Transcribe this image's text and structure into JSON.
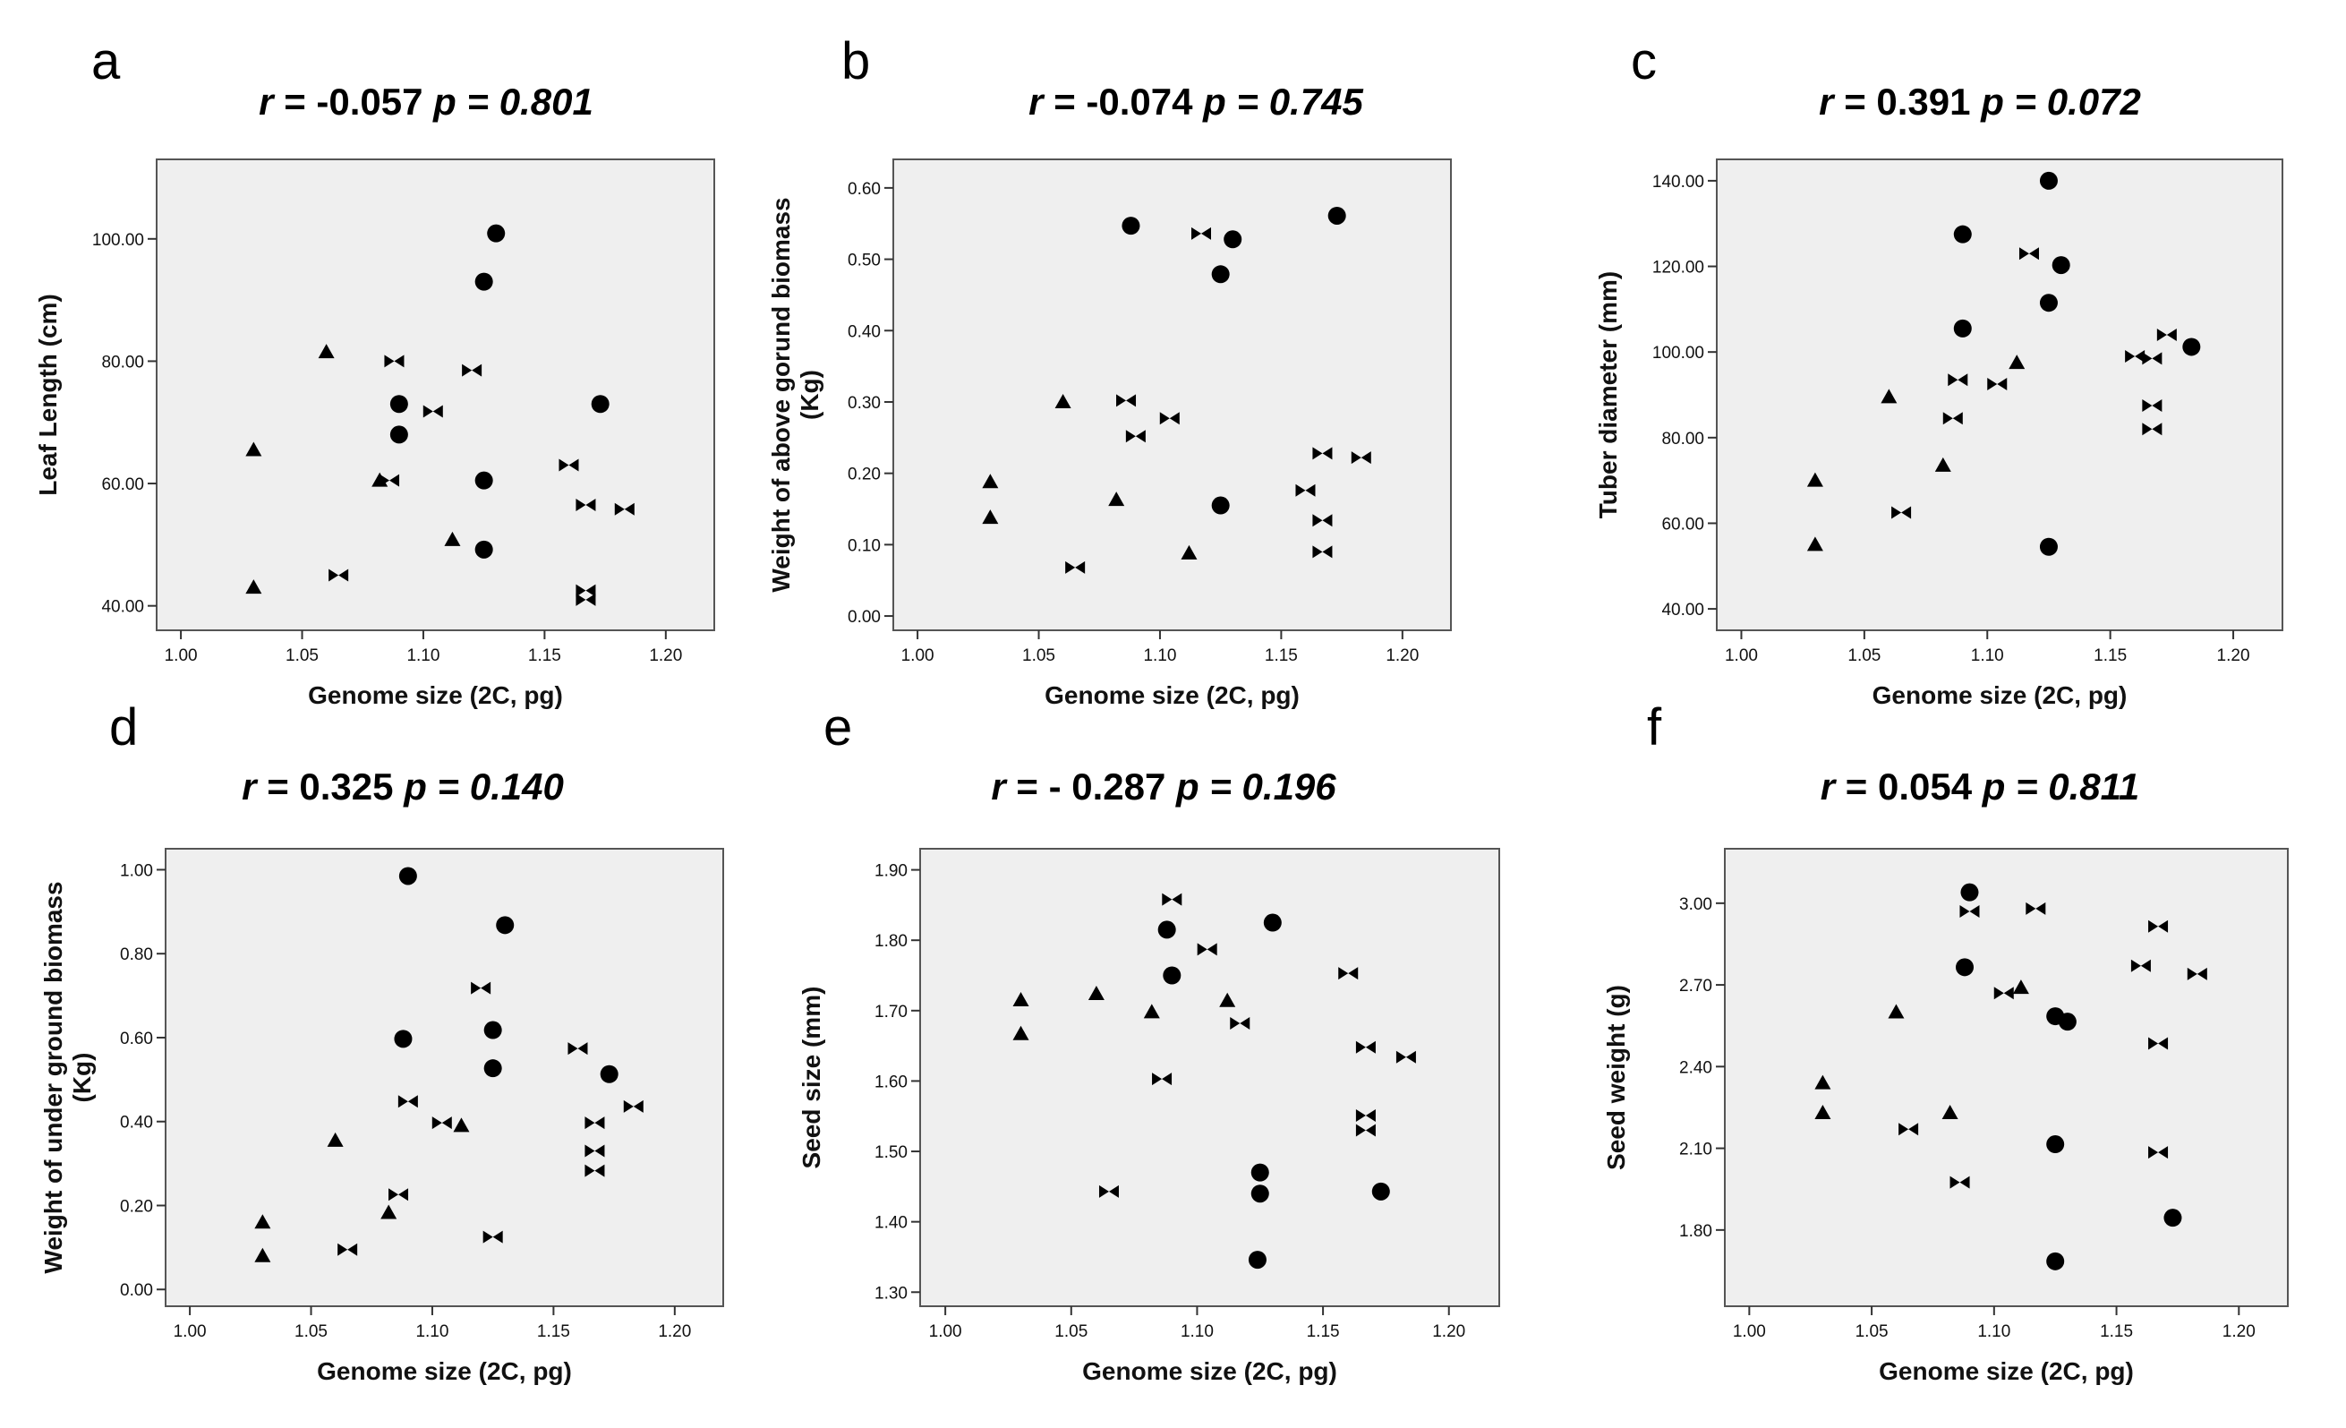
{
  "chart_data": [
    {
      "type": "scatter",
      "panel_letter": "a",
      "title": {
        "r_label": "r",
        "r_value": "= -0.057",
        "p_label": "p",
        "p_value": "= 0.801"
      },
      "xlabel": "Genome size (2C, pg)",
      "ylabel": [
        "Leaf Length (cm)"
      ],
      "xlim": [
        0.99,
        1.22
      ],
      "ylim": [
        36,
        113
      ],
      "xticks": [
        "1.00",
        "1.05",
        "1.10",
        "1.15",
        "1.20"
      ],
      "xtick_values": [
        1.0,
        1.05,
        1.1,
        1.15,
        1.2
      ],
      "yticks": [
        "40.00",
        "60.00",
        "80.00",
        "100.00"
      ],
      "ytick_values": [
        40,
        60,
        80,
        100
      ],
      "series": [
        {
          "name": "circle",
          "marker": "circle",
          "points": [
            [
              1.13,
              100.9
            ],
            [
              1.125,
              93
            ],
            [
              1.09,
              73
            ],
            [
              1.173,
              73
            ],
            [
              1.09,
              68
            ],
            [
              1.125,
              60.5
            ],
            [
              1.125,
              49.2
            ]
          ]
        },
        {
          "name": "triangle",
          "marker": "triangle",
          "points": [
            [
              1.06,
              81.5
            ],
            [
              1.03,
              65.5
            ],
            [
              1.082,
              60.5
            ],
            [
              1.112,
              50.8
            ],
            [
              1.03,
              43
            ]
          ]
        },
        {
          "name": "bowtie",
          "marker": "bowtie",
          "points": [
            [
              1.088,
              80
            ],
            [
              1.12,
              78.5
            ],
            [
              1.104,
              71.8
            ],
            [
              1.16,
              63
            ],
            [
              1.086,
              60.5
            ],
            [
              1.167,
              56.5
            ],
            [
              1.183,
              55.8
            ],
            [
              1.065,
              45
            ],
            [
              1.167,
              42.5
            ],
            [
              1.167,
              41
            ]
          ]
        }
      ]
    },
    {
      "type": "scatter",
      "panel_letter": "b",
      "title": {
        "r_label": "r",
        "r_value": "= -0.074",
        "p_label": "p",
        "p_value": "= 0.745"
      },
      "xlabel": "Genome size (2C, pg)",
      "ylabel": [
        "Weight of above gorund biomass",
        "(Kg)"
      ],
      "xlim": [
        0.99,
        1.22
      ],
      "ylim": [
        -0.02,
        0.64
      ],
      "xticks": [
        "1.00",
        "1.05",
        "1.10",
        "1.15",
        "1.20"
      ],
      "xtick_values": [
        1.0,
        1.05,
        1.1,
        1.15,
        1.2
      ],
      "yticks": [
        "0.00",
        "0.10",
        "0.20",
        "0.30",
        "0.40",
        "0.50",
        "0.60"
      ],
      "ytick_values": [
        0,
        0.1,
        0.2,
        0.3,
        0.4,
        0.5,
        0.6
      ],
      "series": [
        {
          "name": "circle",
          "marker": "circle",
          "points": [
            [
              1.173,
              0.561
            ],
            [
              1.088,
              0.547
            ],
            [
              1.13,
              0.528
            ],
            [
              1.125,
              0.479
            ],
            [
              1.125,
              0.155
            ]
          ]
        },
        {
          "name": "triangle",
          "marker": "triangle",
          "points": [
            [
              1.06,
              0.3
            ],
            [
              1.03,
              0.188
            ],
            [
              1.03,
              0.138
            ],
            [
              1.082,
              0.163
            ],
            [
              1.112,
              0.088
            ]
          ]
        },
        {
          "name": "bowtie",
          "marker": "bowtie",
          "points": [
            [
              1.117,
              0.536
            ],
            [
              1.086,
              0.302
            ],
            [
              1.09,
              0.252
            ],
            [
              1.104,
              0.277
            ],
            [
              1.167,
              0.228
            ],
            [
              1.183,
              0.222
            ],
            [
              1.16,
              0.176
            ],
            [
              1.167,
              0.134
            ],
            [
              1.167,
              0.09
            ],
            [
              1.065,
              0.068
            ]
          ]
        }
      ]
    },
    {
      "type": "scatter",
      "panel_letter": "c",
      "title": {
        "r_label": "r",
        "r_value": "= 0.391",
        "p_label": "p",
        "p_value": "= 0.072"
      },
      "xlabel": "Genome size (2C, pg)",
      "ylabel": [
        "Tuber diameter (mm)"
      ],
      "xlim": [
        0.99,
        1.22
      ],
      "ylim": [
        35,
        145
      ],
      "xticks": [
        "1.00",
        "1.05",
        "1.10",
        "1.15",
        "1.20"
      ],
      "xtick_values": [
        1.0,
        1.05,
        1.1,
        1.15,
        1.2
      ],
      "yticks": [
        "40.00",
        "60.00",
        "80.00",
        "100.00",
        "120.00",
        "140.00"
      ],
      "ytick_values": [
        40,
        60,
        80,
        100,
        120,
        140
      ],
      "series": [
        {
          "name": "circle",
          "marker": "circle",
          "points": [
            [
              1.125,
              140
            ],
            [
              1.09,
              127.5
            ],
            [
              1.13,
              120.3
            ],
            [
              1.125,
              111.5
            ],
            [
              1.09,
              105.5
            ],
            [
              1.183,
              101.2
            ],
            [
              1.125,
              54.5
            ]
          ]
        },
        {
          "name": "triangle",
          "marker": "triangle",
          "points": [
            [
              1.112,
              97.5
            ],
            [
              1.06,
              89.5
            ],
            [
              1.082,
              73.5
            ],
            [
              1.03,
              70
            ],
            [
              1.03,
              55
            ]
          ]
        },
        {
          "name": "bowtie",
          "marker": "bowtie",
          "points": [
            [
              1.117,
              123
            ],
            [
              1.173,
              104
            ],
            [
              1.16,
              99
            ],
            [
              1.167,
              98.5
            ],
            [
              1.088,
              93.5
            ],
            [
              1.104,
              92.5
            ],
            [
              1.167,
              87.5
            ],
            [
              1.086,
              84.5
            ],
            [
              1.167,
              82
            ],
            [
              1.065,
              62.5
            ]
          ]
        }
      ]
    },
    {
      "type": "scatter",
      "panel_letter": "d",
      "title": {
        "r_label": "r",
        "r_value": "= 0.325",
        "p_label": "p",
        "p_value": "= 0.140"
      },
      "xlabel": "Genome size (2C, pg)",
      "ylabel": [
        "Weight of under ground biomass",
        "(Kg)"
      ],
      "xlim": [
        0.99,
        1.22
      ],
      "ylim": [
        -0.04,
        1.05
      ],
      "xticks": [
        "1.00",
        "1.05",
        "1.10",
        "1.15",
        "1.20"
      ],
      "xtick_values": [
        1.0,
        1.05,
        1.1,
        1.15,
        1.2
      ],
      "yticks": [
        "0.00",
        "0.20",
        "0.40",
        "0.60",
        "0.80",
        "1.00"
      ],
      "ytick_values": [
        0,
        0.2,
        0.4,
        0.6,
        0.8,
        1.0
      ],
      "series": [
        {
          "name": "circle",
          "marker": "circle",
          "points": [
            [
              1.09,
              0.985
            ],
            [
              1.13,
              0.868
            ],
            [
              1.125,
              0.618
            ],
            [
              1.088,
              0.597
            ],
            [
              1.125,
              0.527
            ],
            [
              1.173,
              0.513
            ]
          ]
        },
        {
          "name": "triangle",
          "marker": "triangle",
          "points": [
            [
              1.112,
              0.39
            ],
            [
              1.06,
              0.355
            ],
            [
              1.082,
              0.183
            ],
            [
              1.03,
              0.16
            ],
            [
              1.03,
              0.08
            ]
          ]
        },
        {
          "name": "bowtie",
          "marker": "bowtie",
          "points": [
            [
              1.12,
              0.718
            ],
            [
              1.16,
              0.574
            ],
            [
              1.09,
              0.448
            ],
            [
              1.183,
              0.436
            ],
            [
              1.104,
              0.397
            ],
            [
              1.167,
              0.397
            ],
            [
              1.167,
              0.33
            ],
            [
              1.167,
              0.283
            ],
            [
              1.086,
              0.226
            ],
            [
              1.125,
              0.125
            ],
            [
              1.065,
              0.095
            ]
          ]
        }
      ]
    },
    {
      "type": "scatter",
      "panel_letter": "e",
      "title": {
        "r_label": "r",
        "r_value": "= - 0.287",
        "p_label": "p",
        "p_value": "= 0.196"
      },
      "xlabel": "Genome size (2C, pg)",
      "ylabel": [
        "Seed size (mm)"
      ],
      "xlim": [
        0.99,
        1.22
      ],
      "ylim": [
        1.28,
        1.93
      ],
      "xticks": [
        "1.00",
        "1.05",
        "1.10",
        "1.15",
        "1.20"
      ],
      "xtick_values": [
        1.0,
        1.05,
        1.1,
        1.15,
        1.2
      ],
      "yticks": [
        "1.30",
        "1.40",
        "1.50",
        "1.60",
        "1.70",
        "1.80",
        "1.90"
      ],
      "ytick_values": [
        1.3,
        1.4,
        1.5,
        1.6,
        1.7,
        1.8,
        1.9
      ],
      "series": [
        {
          "name": "circle",
          "marker": "circle",
          "points": [
            [
              1.13,
              1.825
            ],
            [
              1.088,
              1.815
            ],
            [
              1.09,
              1.75
            ],
            [
              1.125,
              1.47
            ],
            [
              1.125,
              1.44
            ],
            [
              1.173,
              1.443
            ],
            [
              1.124,
              1.346
            ]
          ]
        },
        {
          "name": "triangle",
          "marker": "triangle",
          "points": [
            [
              1.06,
              1.724
            ],
            [
              1.03,
              1.715
            ],
            [
              1.112,
              1.714
            ],
            [
              1.082,
              1.698
            ],
            [
              1.03,
              1.667
            ]
          ]
        },
        {
          "name": "bowtie",
          "marker": "bowtie",
          "points": [
            [
              1.09,
              1.858
            ],
            [
              1.104,
              1.787
            ],
            [
              1.16,
              1.753
            ],
            [
              1.117,
              1.682
            ],
            [
              1.167,
              1.648
            ],
            [
              1.183,
              1.634
            ],
            [
              1.086,
              1.603
            ],
            [
              1.167,
              1.551
            ],
            [
              1.167,
              1.53
            ],
            [
              1.065,
              1.443
            ]
          ]
        }
      ]
    },
    {
      "type": "scatter",
      "panel_letter": "f",
      "title": {
        "r_label": "r",
        "r_value": "=  0.054",
        "p_label": "p",
        "p_value": "= 0.811"
      },
      "xlabel": "Genome size (2C, pg)",
      "ylabel": [
        "Seed weight (g)"
      ],
      "xlim": [
        0.99,
        1.22
      ],
      "ylim": [
        1.52,
        3.2
      ],
      "xticks": [
        "1.00",
        "1.05",
        "1.10",
        "1.15",
        "1.20"
      ],
      "xtick_values": [
        1.0,
        1.05,
        1.1,
        1.15,
        1.2
      ],
      "yticks": [
        "1.80",
        "2.10",
        "2.40",
        "2.70",
        "3.00"
      ],
      "ytick_values": [
        1.8,
        2.1,
        2.4,
        2.7,
        3.0
      ],
      "series": [
        {
          "name": "circle",
          "marker": "circle",
          "points": [
            [
              1.09,
              3.04
            ],
            [
              1.088,
              2.765
            ],
            [
              1.125,
              2.585
            ],
            [
              1.13,
              2.565
            ],
            [
              1.125,
              2.115
            ],
            [
              1.173,
              1.845
            ],
            [
              1.125,
              1.685
            ]
          ]
        },
        {
          "name": "triangle",
          "marker": "triangle",
          "points": [
            [
              1.111,
              2.69
            ],
            [
              1.06,
              2.6
            ],
            [
              1.03,
              2.34
            ],
            [
              1.03,
              2.23
            ],
            [
              1.082,
              2.23
            ]
          ]
        },
        {
          "name": "bowtie",
          "marker": "bowtie",
          "points": [
            [
              1.117,
              2.98
            ],
            [
              1.09,
              2.97
            ],
            [
              1.167,
              2.915
            ],
            [
              1.16,
              2.77
            ],
            [
              1.183,
              2.74
            ],
            [
              1.104,
              2.67
            ],
            [
              1.167,
              2.485
            ],
            [
              1.065,
              2.17
            ],
            [
              1.167,
              2.085
            ],
            [
              1.086,
              1.975
            ]
          ]
        }
      ]
    }
  ]
}
